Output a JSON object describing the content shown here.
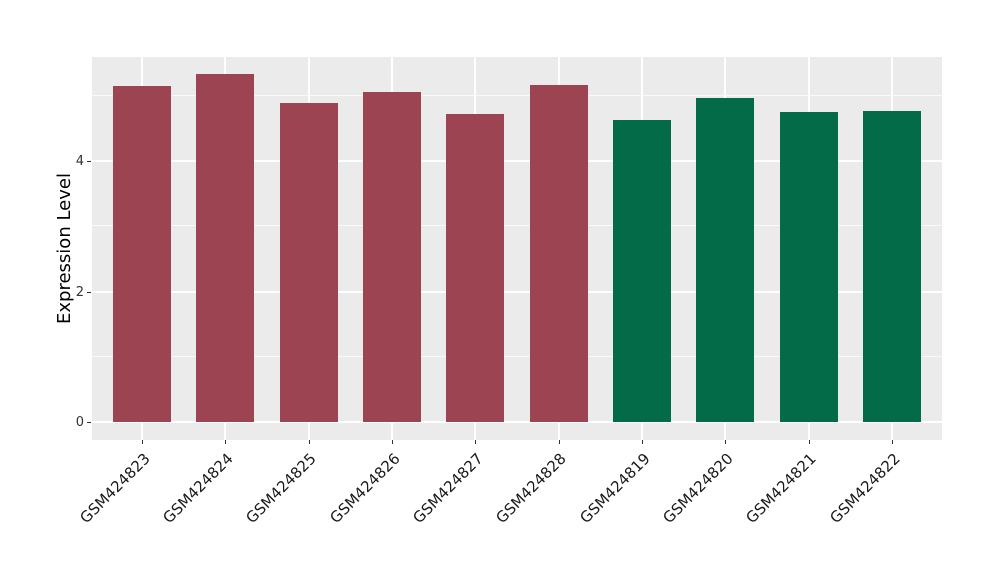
{
  "chart_data": {
    "type": "bar",
    "title": "",
    "xlabel": "",
    "ylabel": "Expression Level",
    "categories": [
      "GSM424823",
      "GSM424824",
      "GSM424825",
      "GSM424826",
      "GSM424827",
      "GSM424828",
      "GSM424819",
      "GSM424820",
      "GSM424821",
      "GSM424822"
    ],
    "values": [
      5.15,
      5.33,
      4.89,
      5.06,
      4.72,
      5.16,
      4.63,
      4.96,
      4.75,
      4.77
    ],
    "bar_colors": [
      "#9c4452",
      "#9c4452",
      "#9c4452",
      "#9c4452",
      "#9c4452",
      "#9c4452",
      "#046b49",
      "#046b49",
      "#046b49",
      "#046b49"
    ],
    "y_major_ticks": [
      0,
      2,
      4
    ],
    "y_minor_ticks": [
      1,
      3,
      5
    ],
    "ylim": [
      -0.28,
      5.59
    ],
    "legend": "none",
    "grid": "on",
    "style": {
      "panel_background": "#ebebeb",
      "gridline_color": "#ffffff",
      "tick_color": "#333333",
      "group_red": "#9c4452",
      "group_green": "#046b49"
    }
  }
}
